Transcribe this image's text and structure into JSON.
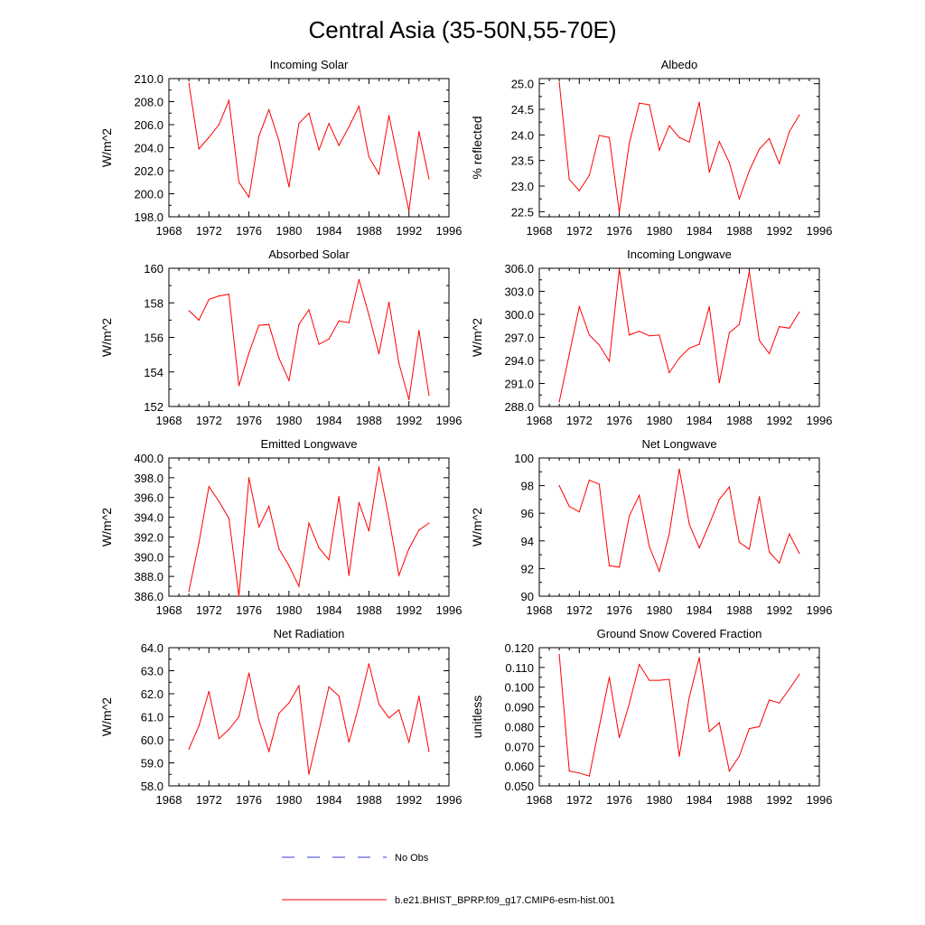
{
  "figure_title": "Central Asia (35-50N,55-70E)",
  "legend": {
    "entries": [
      {
        "label": "No Obs",
        "color": "#3a3acc",
        "style": "dashed"
      },
      {
        "label": "b.e21.BHIST_BPRP.f09_g17.CMIP6-esm-hist.001",
        "color": "#ff0000",
        "style": "solid"
      }
    ]
  },
  "chart_data": [
    {
      "type": "line",
      "title": "Incoming Solar",
      "ylabel": "W/m^2",
      "xlabel": "",
      "xlim": [
        1968,
        1996
      ],
      "xticks": [
        "1968",
        "1972",
        "1976",
        "1980",
        "1984",
        "1988",
        "1992",
        "1996"
      ],
      "ylim": [
        198.0,
        210.0
      ],
      "yticks": [
        "198.0",
        "200.0",
        "202.0",
        "204.0",
        "206.0",
        "208.0",
        "210.0"
      ],
      "x": [
        1970,
        1971,
        1972,
        1973,
        1974,
        1975,
        1976,
        1977,
        1978,
        1979,
        1980,
        1981,
        1982,
        1983,
        1984,
        1985,
        1986,
        1987,
        1988,
        1989,
        1990,
        1991,
        1992,
        1993,
        1994
      ],
      "series": [
        {
          "name": "b.e21.BHIST_BPRP.f09_g17.CMIP6-esm-hist.001",
          "color": "#ff0000",
          "values": [
            209.6,
            203.9,
            204.9,
            206.0,
            208.1,
            201.0,
            199.7,
            205.0,
            207.3,
            204.6,
            200.6,
            206.1,
            207.0,
            203.8,
            206.1,
            204.2,
            205.8,
            207.6,
            203.2,
            201.7,
            206.8,
            202.6,
            198.5,
            205.4,
            201.3
          ]
        }
      ]
    },
    {
      "type": "line",
      "title": "Albedo",
      "ylabel": "% reflected",
      "xlabel": "",
      "xlim": [
        1968,
        1996
      ],
      "xticks": [
        "1968",
        "1972",
        "1976",
        "1980",
        "1984",
        "1988",
        "1992",
        "1996"
      ],
      "ylim": [
        22.4,
        25.1
      ],
      "yticks": [
        "22.5",
        "23.0",
        "23.5",
        "24.0",
        "24.5",
        "25.0"
      ],
      "x": [
        1970,
        1971,
        1972,
        1973,
        1974,
        1975,
        1976,
        1977,
        1978,
        1979,
        1980,
        1981,
        1982,
        1983,
        1984,
        1985,
        1986,
        1987,
        1988,
        1989,
        1990,
        1991,
        1992,
        1993,
        1994
      ],
      "series": [
        {
          "name": "b.e21.BHIST_BPRP.f09_g17.CMIP6-esm-hist.001",
          "color": "#ff0000",
          "values": [
            25.03,
            23.13,
            22.91,
            23.21,
            23.99,
            23.95,
            22.49,
            23.83,
            24.62,
            24.59,
            23.7,
            24.18,
            23.95,
            23.86,
            24.64,
            23.27,
            23.87,
            23.46,
            22.75,
            23.3,
            23.72,
            23.93,
            23.44,
            24.06,
            24.39
          ]
        }
      ]
    },
    {
      "type": "line",
      "title": "Absorbed Solar",
      "ylabel": "W/m^2",
      "xlabel": "",
      "xlim": [
        1968,
        1996
      ],
      "xticks": [
        "1968",
        "1972",
        "1976",
        "1980",
        "1984",
        "1988",
        "1992",
        "1996"
      ],
      "ylim": [
        152,
        160
      ],
      "yticks": [
        "152",
        "154",
        "156",
        "158",
        "160"
      ],
      "x": [
        1970,
        1971,
        1972,
        1973,
        1974,
        1975,
        1976,
        1977,
        1978,
        1979,
        1980,
        1981,
        1982,
        1983,
        1984,
        1985,
        1986,
        1987,
        1988,
        1989,
        1990,
        1991,
        1992,
        1993,
        1994
      ],
      "series": [
        {
          "name": "b.e21.BHIST_BPRP.f09_g17.CMIP6-esm-hist.001",
          "color": "#ff0000",
          "values": [
            157.55,
            157.0,
            158.2,
            158.4,
            158.5,
            153.2,
            155.1,
            156.7,
            156.75,
            154.8,
            153.5,
            156.75,
            157.6,
            155.6,
            155.9,
            156.95,
            156.85,
            159.35,
            157.3,
            155.05,
            158.05,
            154.5,
            152.4,
            156.4,
            152.65
          ]
        }
      ]
    },
    {
      "type": "line",
      "title": "Incoming Longwave",
      "ylabel": "W/m^2",
      "xlabel": "",
      "xlim": [
        1968,
        1996
      ],
      "xticks": [
        "1968",
        "1972",
        "1976",
        "1980",
        "1984",
        "1988",
        "1992",
        "1996"
      ],
      "ylim": [
        288.0,
        306.0
      ],
      "yticks": [
        "288.0",
        "291.0",
        "294.0",
        "297.0",
        "300.0",
        "303.0",
        "306.0"
      ],
      "x": [
        1970,
        1971,
        1972,
        1973,
        1974,
        1975,
        1976,
        1977,
        1978,
        1979,
        1980,
        1981,
        1982,
        1983,
        1984,
        1985,
        1986,
        1987,
        1988,
        1989,
        1990,
        1991,
        1992,
        1993,
        1994
      ],
      "series": [
        {
          "name": "b.e21.BHIST_BPRP.f09_g17.CMIP6-esm-hist.001",
          "color": "#ff0000",
          "values": [
            288.6,
            294.8,
            301.0,
            297.3,
            296.0,
            293.9,
            305.9,
            297.3,
            297.8,
            297.2,
            297.3,
            292.4,
            294.3,
            295.6,
            296.1,
            301.0,
            291.1,
            297.6,
            298.7,
            305.6,
            296.6,
            294.9,
            298.4,
            298.2,
            300.3
          ]
        }
      ]
    },
    {
      "type": "line",
      "title": "Emitted Longwave",
      "ylabel": "W/m^2",
      "xlabel": "",
      "xlim": [
        1968,
        1996
      ],
      "xticks": [
        "1968",
        "1972",
        "1976",
        "1980",
        "1984",
        "1988",
        "1992",
        "1996"
      ],
      "ylim": [
        386.0,
        400.0
      ],
      "yticks": [
        "386.0",
        "388.0",
        "390.0",
        "392.0",
        "394.0",
        "396.0",
        "398.0",
        "400.0"
      ],
      "x": [
        1970,
        1971,
        1972,
        1973,
        1974,
        1975,
        1976,
        1977,
        1978,
        1979,
        1980,
        1981,
        1982,
        1983,
        1984,
        1985,
        1986,
        1987,
        1988,
        1989,
        1990,
        1991,
        1992,
        1993,
        1994
      ],
      "series": [
        {
          "name": "b.e21.BHIST_BPRP.f09_g17.CMIP6-esm-hist.001",
          "color": "#ff0000",
          "values": [
            386.5,
            391.4,
            397.1,
            395.6,
            393.9,
            386.0,
            398.0,
            393.0,
            395.1,
            390.8,
            389.1,
            387.0,
            393.4,
            390.9,
            389.7,
            396.1,
            388.1,
            395.5,
            392.6,
            399.1,
            393.9,
            388.1,
            390.8,
            392.7,
            393.4
          ]
        }
      ]
    },
    {
      "type": "line",
      "title": "Net Longwave",
      "ylabel": "W/m^2",
      "xlabel": "",
      "xlim": [
        1968,
        1996
      ],
      "xticks": [
        "1968",
        "1972",
        "1976",
        "1980",
        "1984",
        "1988",
        "1992",
        "1996"
      ],
      "ylim": [
        90,
        100
      ],
      "yticks": [
        "90",
        "92",
        "94",
        "96",
        "98",
        "100"
      ],
      "x": [
        1970,
        1971,
        1972,
        1973,
        1974,
        1975,
        1976,
        1977,
        1978,
        1979,
        1980,
        1981,
        1982,
        1983,
        1984,
        1985,
        1986,
        1987,
        1988,
        1989,
        1990,
        1991,
        1992,
        1993,
        1994
      ],
      "series": [
        {
          "name": "b.e21.BHIST_BPRP.f09_g17.CMIP6-esm-hist.001",
          "color": "#ff0000",
          "values": [
            98.0,
            96.5,
            96.1,
            98.4,
            98.1,
            92.2,
            92.1,
            95.8,
            97.3,
            93.6,
            91.8,
            94.5,
            99.2,
            95.2,
            93.5,
            95.2,
            97.0,
            97.9,
            93.9,
            93.4,
            97.2,
            93.2,
            92.4,
            94.5,
            93.1
          ]
        }
      ]
    },
    {
      "type": "line",
      "title": "Net Radiation",
      "ylabel": "W/m^2",
      "xlabel": "",
      "xlim": [
        1968,
        1996
      ],
      "xticks": [
        "1968",
        "1972",
        "1976",
        "1980",
        "1984",
        "1988",
        "1992",
        "1996"
      ],
      "ylim": [
        58.0,
        64.0
      ],
      "yticks": [
        "58.0",
        "59.0",
        "60.0",
        "61.0",
        "62.0",
        "63.0",
        "64.0"
      ],
      "x": [
        1970,
        1971,
        1972,
        1973,
        1974,
        1975,
        1976,
        1977,
        1978,
        1979,
        1980,
        1981,
        1982,
        1983,
        1984,
        1985,
        1986,
        1987,
        1988,
        1989,
        1990,
        1991,
        1992,
        1993,
        1994
      ],
      "series": [
        {
          "name": "b.e21.BHIST_BPRP.f09_g17.CMIP6-esm-hist.001",
          "color": "#ff0000",
          "values": [
            59.6,
            60.6,
            62.1,
            60.05,
            60.45,
            61.0,
            62.9,
            60.85,
            59.5,
            61.15,
            61.6,
            62.35,
            58.5,
            60.4,
            62.3,
            61.9,
            59.9,
            61.5,
            63.3,
            61.55,
            60.95,
            61.3,
            59.9,
            61.9,
            59.5
          ]
        }
      ]
    },
    {
      "type": "line",
      "title": "Ground Snow Covered Fraction",
      "ylabel": "unitless",
      "xlabel": "",
      "xlim": [
        1968,
        1996
      ],
      "xticks": [
        "1968",
        "1972",
        "1976",
        "1980",
        "1984",
        "1988",
        "1992",
        "1996"
      ],
      "ylim": [
        0.05,
        0.12
      ],
      "yticks": [
        "0.050",
        "0.060",
        "0.070",
        "0.080",
        "0.090",
        "0.100",
        "0.110",
        "0.120"
      ],
      "x": [
        1970,
        1971,
        1972,
        1973,
        1974,
        1975,
        1976,
        1977,
        1978,
        1979,
        1980,
        1981,
        1982,
        1983,
        1984,
        1985,
        1986,
        1987,
        1988,
        1989,
        1990,
        1991,
        1992,
        1993,
        1994
      ],
      "series": [
        {
          "name": "b.e21.BHIST_BPRP.f09_g17.CMIP6-esm-hist.001",
          "color": "#ff0000",
          "values": [
            0.1165,
            0.0575,
            0.0565,
            0.055,
            0.08,
            0.105,
            0.0745,
            0.0915,
            0.1115,
            0.1035,
            0.1035,
            0.104,
            0.065,
            0.095,
            0.115,
            0.0775,
            0.082,
            0.0575,
            0.065,
            0.079,
            0.08,
            0.0935,
            0.092,
            0.099,
            0.1065
          ]
        }
      ]
    }
  ]
}
